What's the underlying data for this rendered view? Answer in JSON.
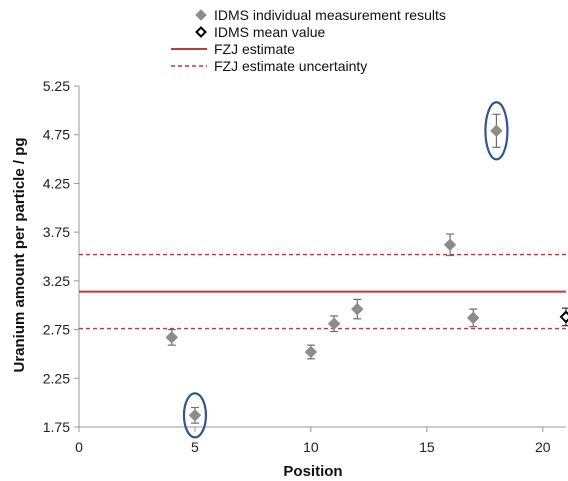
{
  "chart_data": {
    "type": "scatter",
    "xlabel": "Position",
    "ylabel": "Uranium amount per particle / pg",
    "xlim": [
      0,
      21
    ],
    "ylim": [
      1.75,
      5.25
    ],
    "x_ticks": [
      0,
      5,
      10,
      15,
      20
    ],
    "y_ticks": [
      1.75,
      2.25,
      2.75,
      3.25,
      3.75,
      4.25,
      4.75,
      5.25
    ],
    "x_tick_labels": [
      "0",
      "5",
      "10",
      "15",
      "20"
    ],
    "y_tick_labels": [
      "1.75",
      "2.25",
      "2.75",
      "3.25",
      "3.75",
      "4.25",
      "4.75",
      "5.25"
    ],
    "grid": false,
    "legend_position": "top",
    "legend": [
      {
        "label": "IDMS individual measurement results",
        "marker": "diamond-filled"
      },
      {
        "label": "IDMS mean value",
        "marker": "diamond-open"
      },
      {
        "label": "FZJ estimate",
        "marker": "line-solid"
      },
      {
        "label": "FZJ estimate uncertainty",
        "marker": "line-dashed"
      }
    ],
    "colors": {
      "points": "#8c8c8c",
      "mean": "#000000",
      "estimate": "#c0393b",
      "highlight": "#2f5597",
      "axis": "#999999"
    },
    "series": [
      {
        "name": "IDMS individual measurement results",
        "points": [
          {
            "x": 4,
            "y": 2.67,
            "err": 0.08
          },
          {
            "x": 5,
            "y": 1.87,
            "err": 0.08
          },
          {
            "x": 10,
            "y": 2.52,
            "err": 0.07
          },
          {
            "x": 11,
            "y": 2.81,
            "err": 0.08
          },
          {
            "x": 12,
            "y": 2.96,
            "err": 0.1
          },
          {
            "x": 16,
            "y": 3.62,
            "err": 0.11
          },
          {
            "x": 17,
            "y": 2.87,
            "err": 0.09
          },
          {
            "x": 18,
            "y": 4.79,
            "err": 0.17
          }
        ]
      },
      {
        "name": "IDMS mean value",
        "points": [
          {
            "x": 21,
            "y": 2.88,
            "err": 0.09
          }
        ]
      }
    ],
    "reference_lines": {
      "estimate": 3.14,
      "uncertainty_upper": 3.52,
      "uncertainty_lower": 2.76
    },
    "highlighted_x": [
      5,
      18
    ]
  }
}
